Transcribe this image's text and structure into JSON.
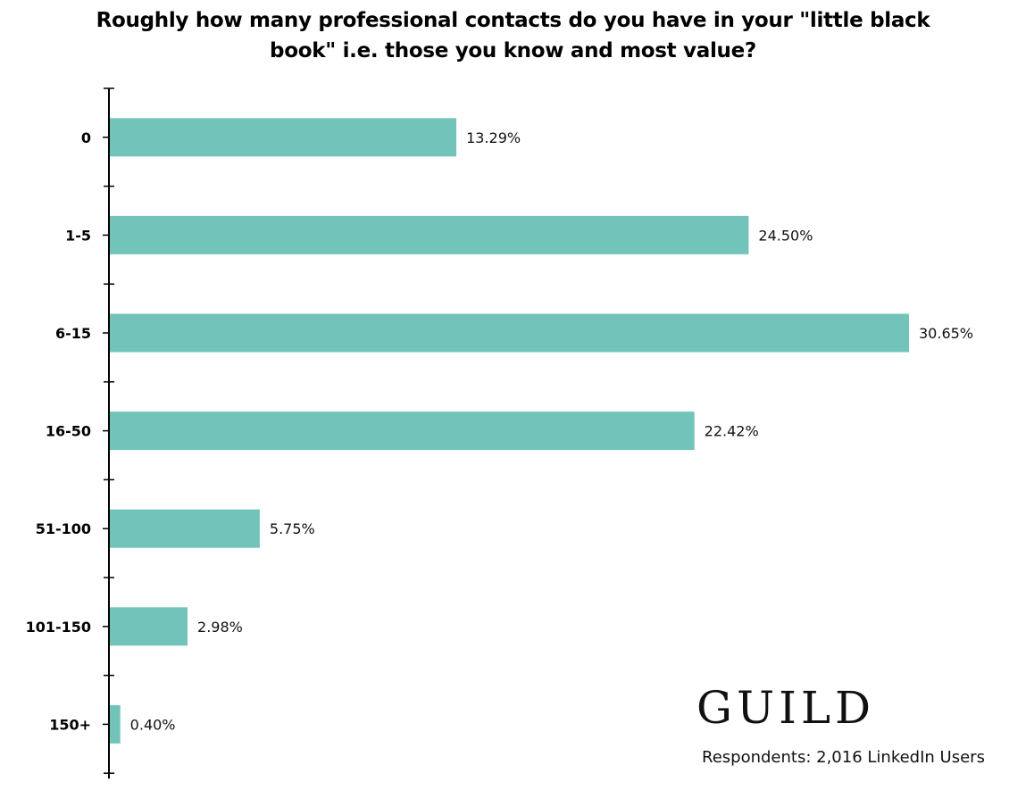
{
  "header": {
    "title_line1": "Roughly how many professional contacts do you have in your \"little black",
    "title_line2": "book\" i.e. those you know and most value?"
  },
  "brand": {
    "logo_text": "GUILD"
  },
  "footer": {
    "respondents": "Respondents: 2,016 LinkedIn Users"
  },
  "colors": {
    "bar": "#72C4BB",
    "axis": "#000000"
  },
  "chart_data": {
    "type": "bar",
    "orientation": "horizontal",
    "title": "Roughly how many professional contacts do you have in your \"little black book\" i.e. those you know and most value?",
    "categories": [
      "0",
      "1-5",
      "6-15",
      "16-50",
      "51-100",
      "101-150",
      "150+"
    ],
    "values": [
      13.29,
      24.5,
      30.65,
      22.42,
      5.75,
      2.98,
      0.4
    ],
    "value_labels": [
      "13.29%",
      "24.50%",
      "30.65%",
      "22.42%",
      "5.75%",
      "2.98%",
      "0.40%"
    ],
    "xlim": [
      0,
      30.65
    ],
    "grid": false,
    "legend": "none"
  }
}
